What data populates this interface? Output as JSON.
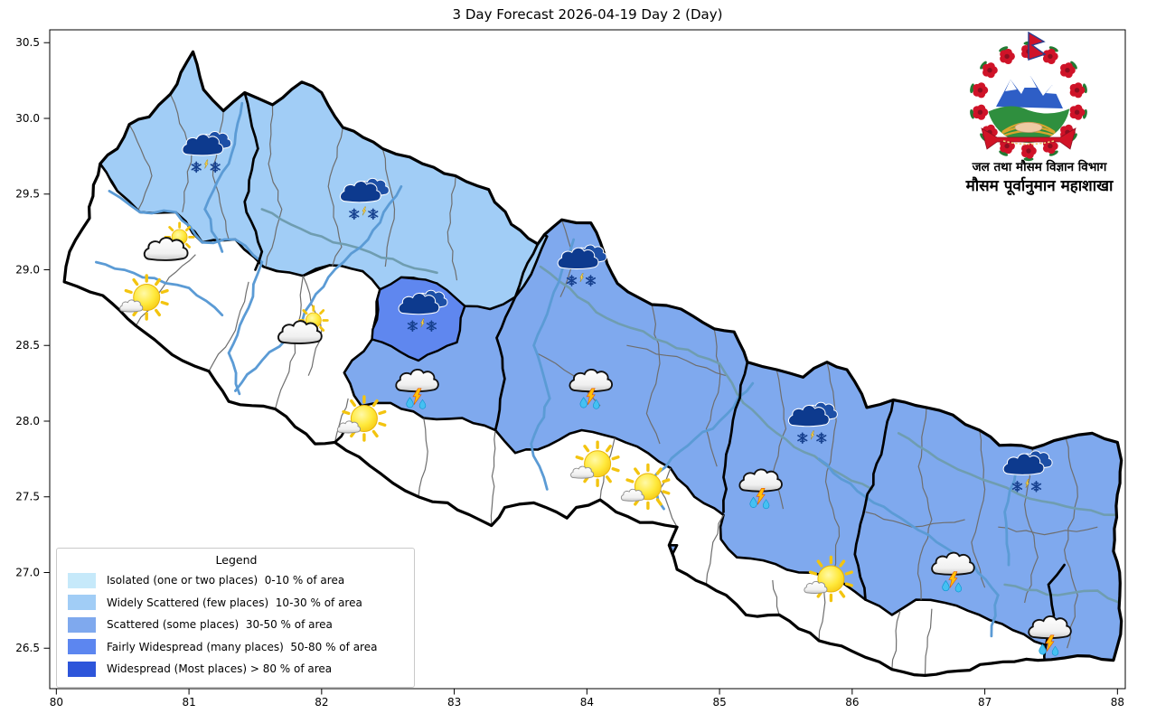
{
  "title": "3 Day Forecast 2026-04-19 Day 2 (Day)",
  "axes": {
    "x_tick_values": [
      80,
      81,
      82,
      83,
      84,
      85,
      86,
      87,
      88
    ],
    "x_tick_labels": [
      "80",
      "81",
      "82",
      "83",
      "84",
      "85",
      "86",
      "87",
      "88"
    ],
    "y_tick_values": [
      30.5,
      30.0,
      29.5,
      29.0,
      28.5,
      28.0,
      27.5,
      27.0,
      26.5
    ],
    "y_tick_labels": [
      "30.5",
      "30.0",
      "29.5",
      "29.0",
      "28.5",
      "28.0",
      "27.5",
      "27.0",
      "26.5"
    ]
  },
  "legend": {
    "title": "Legend",
    "items": [
      {
        "label": "Isolated (one or two places)  0-10 % of area",
        "color": "#c6e9fa"
      },
      {
        "label": "Widely Scattered (few places)  10-30 % of area",
        "color": "#a1cdf6"
      },
      {
        "label": "Scattered (some places)  30-50 % of area",
        "color": "#7fa9ee"
      },
      {
        "label": "Fairly Widespread (many places)  50-80 % of area",
        "color": "#5c86f0"
      },
      {
        "label": "Widespread (Most places) > 80 % of area",
        "color": "#2d55da"
      }
    ]
  },
  "logo": {
    "line1": "जल तथा मौसम विज्ञान विभाग",
    "line2": "मौसम पूर्वानुमान महाशाखा"
  },
  "map": {
    "region_colors": {
      "none": "#ffffff",
      "widely_scattered": "#a1cdf6",
      "scattered": "#7fa9ee",
      "fairly_widespread": "#5f87ef"
    },
    "icons": [
      {
        "type": "snow-shower",
        "lon": 81.13,
        "lat": 29.75
      },
      {
        "type": "snow-shower",
        "lon": 82.32,
        "lat": 29.44
      },
      {
        "type": "mostly-cloudy",
        "lon": 80.84,
        "lat": 29.12
      },
      {
        "type": "mostly-sunny",
        "lon": 80.66,
        "lat": 28.8
      },
      {
        "type": "mostly-cloudy",
        "lon": 81.85,
        "lat": 28.57
      },
      {
        "type": "snow-shower",
        "lon": 82.76,
        "lat": 28.7
      },
      {
        "type": "thunder-shower",
        "lon": 82.72,
        "lat": 28.24
      },
      {
        "type": "mostly-sunny",
        "lon": 82.3,
        "lat": 28.0
      },
      {
        "type": "snow-shower",
        "lon": 83.96,
        "lat": 29.0
      },
      {
        "type": "thunder-shower",
        "lon": 84.03,
        "lat": 28.24
      },
      {
        "type": "mostly-sunny",
        "lon": 84.06,
        "lat": 27.7
      },
      {
        "type": "mostly-sunny",
        "lon": 84.44,
        "lat": 27.55
      },
      {
        "type": "thunder-shower",
        "lon": 85.31,
        "lat": 27.58
      },
      {
        "type": "snow-shower",
        "lon": 85.7,
        "lat": 27.96
      },
      {
        "type": "mostly-sunny",
        "lon": 85.82,
        "lat": 26.94
      },
      {
        "type": "thunder-shower",
        "lon": 86.76,
        "lat": 27.03
      },
      {
        "type": "snow-shower",
        "lon": 87.32,
        "lat": 27.64
      },
      {
        "type": "thunder-shower",
        "lon": 87.49,
        "lat": 26.61
      }
    ]
  }
}
